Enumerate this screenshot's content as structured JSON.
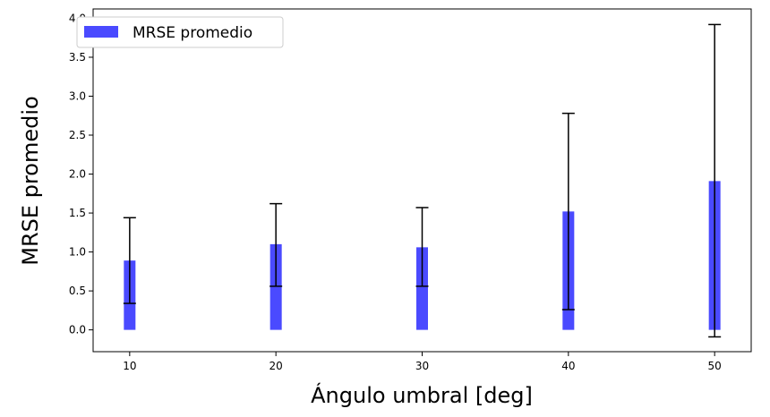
{
  "chart_data": {
    "type": "bar",
    "x": [
      10,
      20,
      30,
      40,
      50
    ],
    "x_ticks": [
      "10",
      "20",
      "30",
      "40",
      "50"
    ],
    "y_ticks": [
      "0.0",
      "0.5",
      "1.0",
      "1.5",
      "2.0",
      "2.5",
      "3.0",
      "3.5",
      "4.0"
    ],
    "series": [
      {
        "name": "MRSE promedio",
        "values": [
          0.89,
          1.1,
          1.06,
          1.52,
          1.91
        ],
        "error_low": [
          0.34,
          0.56,
          0.56,
          0.26,
          -0.09
        ],
        "error_high": [
          1.44,
          1.62,
          1.57,
          2.78,
          3.92
        ],
        "color": "#4a4aff"
      }
    ],
    "xlabel": "Ángulo umbral [deg]",
    "ylabel": "MRSE promedio",
    "xlim": [
      7.5,
      52.5
    ],
    "ylim": [
      -0.28,
      4.12
    ],
    "grid": false,
    "legend_position": "top-left"
  }
}
